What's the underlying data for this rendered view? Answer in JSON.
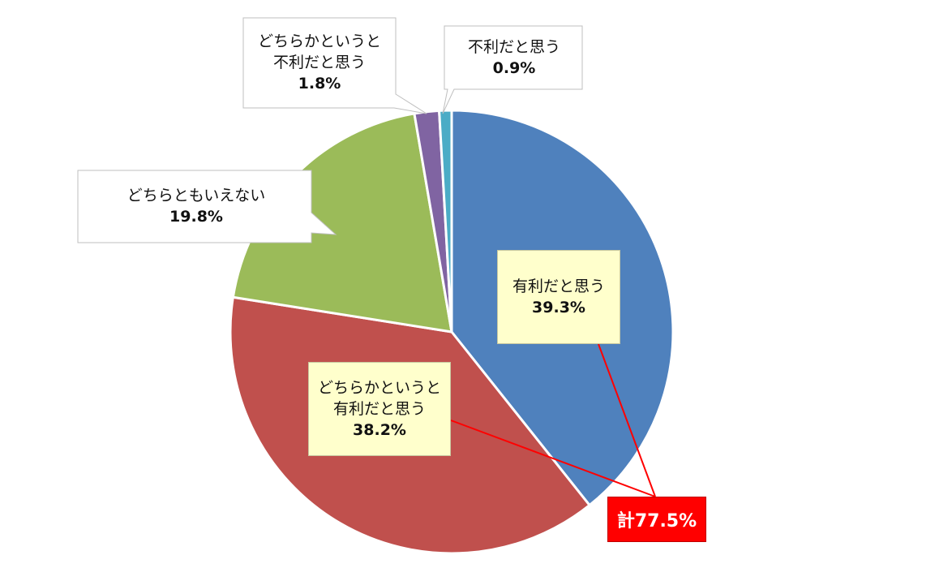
{
  "chart_data": {
    "type": "pie",
    "slices": [
      {
        "label": "有利だと思う",
        "value": 39.3,
        "value_label": "39.3%",
        "color": "#4f81bd"
      },
      {
        "label": "どちらかというと有利だと思う",
        "label_lines": [
          "どちらかというと",
          "有利だと思う"
        ],
        "value": 38.2,
        "value_label": "38.2%",
        "color": "#c0504d"
      },
      {
        "label": "どちらともいえない",
        "value": 19.8,
        "value_label": "19.8%",
        "color": "#9bbb59"
      },
      {
        "label": "どちらかというと不利だと思う",
        "label_lines": [
          "どちらかというと",
          "不利だと思う"
        ],
        "value": 1.8,
        "value_label": "1.8%",
        "color": "#8064a2"
      },
      {
        "label": "不利だと思う",
        "value": 0.9,
        "value_label": "0.9%",
        "color": "#4bacc6"
      }
    ],
    "start": "12 o'clock",
    "direction": "clockwise",
    "total_annotation": {
      "text": "計77.5%",
      "covers": [
        "有利だと思う",
        "どちらかというと有利だと思う"
      ],
      "color": "#ff0000"
    },
    "legend": "none"
  }
}
